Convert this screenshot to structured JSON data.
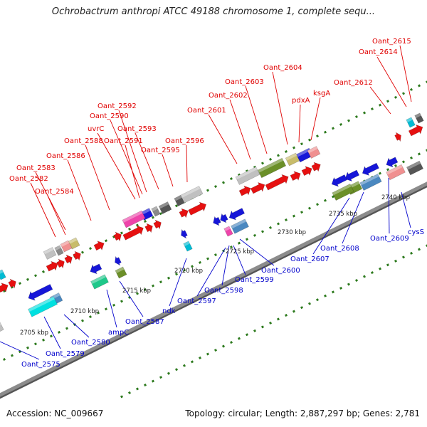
{
  "title": "Ochrobactrum anthropi ATCC 49188 chromosome 1, complete sequ...",
  "accession": "Accession: NC_009667",
  "topology": "Topology: circular; Length: 2,887,297 bp; Genes: 2,781",
  "colors": {
    "forward_label": "#e00000",
    "reverse_label": "#0000cc",
    "forward_gene": "#e61010",
    "reverse_gene": "#1616d8",
    "backbone": "#8c8c8c",
    "dot_forward": "#2d7a1e",
    "dot_reverse": "#2d7a1e"
  },
  "scale_labels": [
    "2705 kbp",
    "2710 kbp",
    "2715 kbp",
    "2720 kbp",
    "2725 kbp",
    "2730 kbp",
    "2735 kbp",
    "2740 kbp"
  ],
  "forward_labels": [
    "Oant_2615",
    "Oant_2614",
    "Oant_2604",
    "Oant_2603",
    "Oant_2612",
    "pdxA",
    "ksgA",
    "Oant_2602",
    "Oant_2601",
    "Oant_2592",
    "Oant_2590",
    "uvrC",
    "Oant_2593",
    "Oant_2588",
    "Oant_2591",
    "Oant_2596",
    "Oant_2595",
    "Oant_2586",
    "Oant_2583",
    "Oant_2582",
    "Oant_2584"
  ],
  "reverse_labels": [
    "cysS",
    "Oant_2609",
    "Oant_2608",
    "Oant_2607",
    "Oant_2600",
    "Oant_2599",
    "Oant_2598",
    "Oant_2597",
    "ndk",
    "Oant_2587",
    "ampC",
    "Oant_2580",
    "Oant_2579",
    "Oant_2575"
  ]
}
